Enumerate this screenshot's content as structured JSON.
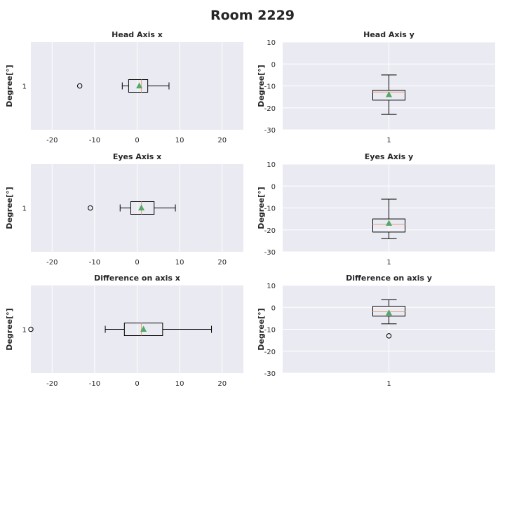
{
  "suptitle": "Room 2229",
  "chart_data": [
    {
      "type": "box",
      "orientation": "horizontal",
      "title": "Head Axis x",
      "ylabel": "Degree[°]",
      "xlabel": "",
      "xlim": [
        -25,
        25
      ],
      "xticks": [
        -20,
        -10,
        0,
        10,
        20
      ],
      "category_ticks": [
        "1"
      ],
      "grid": true,
      "box": {
        "whisker_low": -3.5,
        "q1": -2,
        "median": 1,
        "q3": 2.5,
        "whisker_high": 7.5,
        "mean": 0.5,
        "outliers": [
          -13.5
        ]
      }
    },
    {
      "type": "box",
      "orientation": "vertical",
      "title": "Head Axis y",
      "ylabel": "Degree[°]",
      "xlabel": "",
      "ylim": [
        -30,
        10
      ],
      "yticks": [
        -30,
        -20,
        -10,
        0,
        10
      ],
      "category_ticks": [
        "1"
      ],
      "grid": true,
      "box": {
        "whisker_low": -23,
        "q1": -16.5,
        "median": -12.8,
        "q3": -12,
        "whisker_high": -5,
        "mean": -14,
        "outliers": []
      }
    },
    {
      "type": "box",
      "orientation": "horizontal",
      "title": "Eyes Axis x",
      "ylabel": "Degree[°]",
      "xlabel": "",
      "xlim": [
        -25,
        25
      ],
      "xticks": [
        -20,
        -10,
        0,
        10,
        20
      ],
      "category_ticks": [
        "1"
      ],
      "grid": true,
      "box": {
        "whisker_low": -4,
        "q1": -1.5,
        "median": 1,
        "q3": 4,
        "whisker_high": 9,
        "mean": 1,
        "outliers": [
          -11
        ]
      }
    },
    {
      "type": "box",
      "orientation": "vertical",
      "title": "Eyes Axis y",
      "ylabel": "Degree[°]",
      "xlabel": "",
      "ylim": [
        -30,
        10
      ],
      "yticks": [
        -30,
        -20,
        -10,
        0,
        10
      ],
      "category_ticks": [
        "1"
      ],
      "grid": true,
      "box": {
        "whisker_low": -24,
        "q1": -21,
        "median": -17.5,
        "q3": -15,
        "whisker_high": -6,
        "mean": -17,
        "outliers": []
      }
    },
    {
      "type": "box",
      "orientation": "horizontal",
      "title": "Difference on axis x",
      "ylabel": "Degree[°]",
      "xlabel": "",
      "xlim": [
        -25,
        25
      ],
      "xticks": [
        -20,
        -10,
        0,
        10,
        20
      ],
      "category_ticks": [
        "1"
      ],
      "grid": true,
      "box": {
        "whisker_low": -7.5,
        "q1": -3,
        "median": 1,
        "q3": 6,
        "whisker_high": 17.5,
        "mean": 1.5,
        "outliers": [
          -25
        ]
      }
    },
    {
      "type": "box",
      "orientation": "vertical",
      "title": "Difference on axis y",
      "ylabel": "Degree[°]",
      "xlabel": "",
      "ylim": [
        -30,
        10
      ],
      "yticks": [
        -30,
        -20,
        -10,
        0,
        10
      ],
      "category_ticks": [
        "1"
      ],
      "grid": true,
      "box": {
        "whisker_low": -7.5,
        "q1": -4,
        "median": -2,
        "q3": 0.5,
        "whisker_high": 3.5,
        "mean": -2.5,
        "outliers": [
          -13
        ]
      }
    }
  ],
  "colors": {
    "axes_background": "#eaeaf2",
    "grid": "#ffffff",
    "box_edge": "#000000",
    "median": "#e6a07a",
    "mean_marker": "#55a868",
    "text": "#262626"
  }
}
